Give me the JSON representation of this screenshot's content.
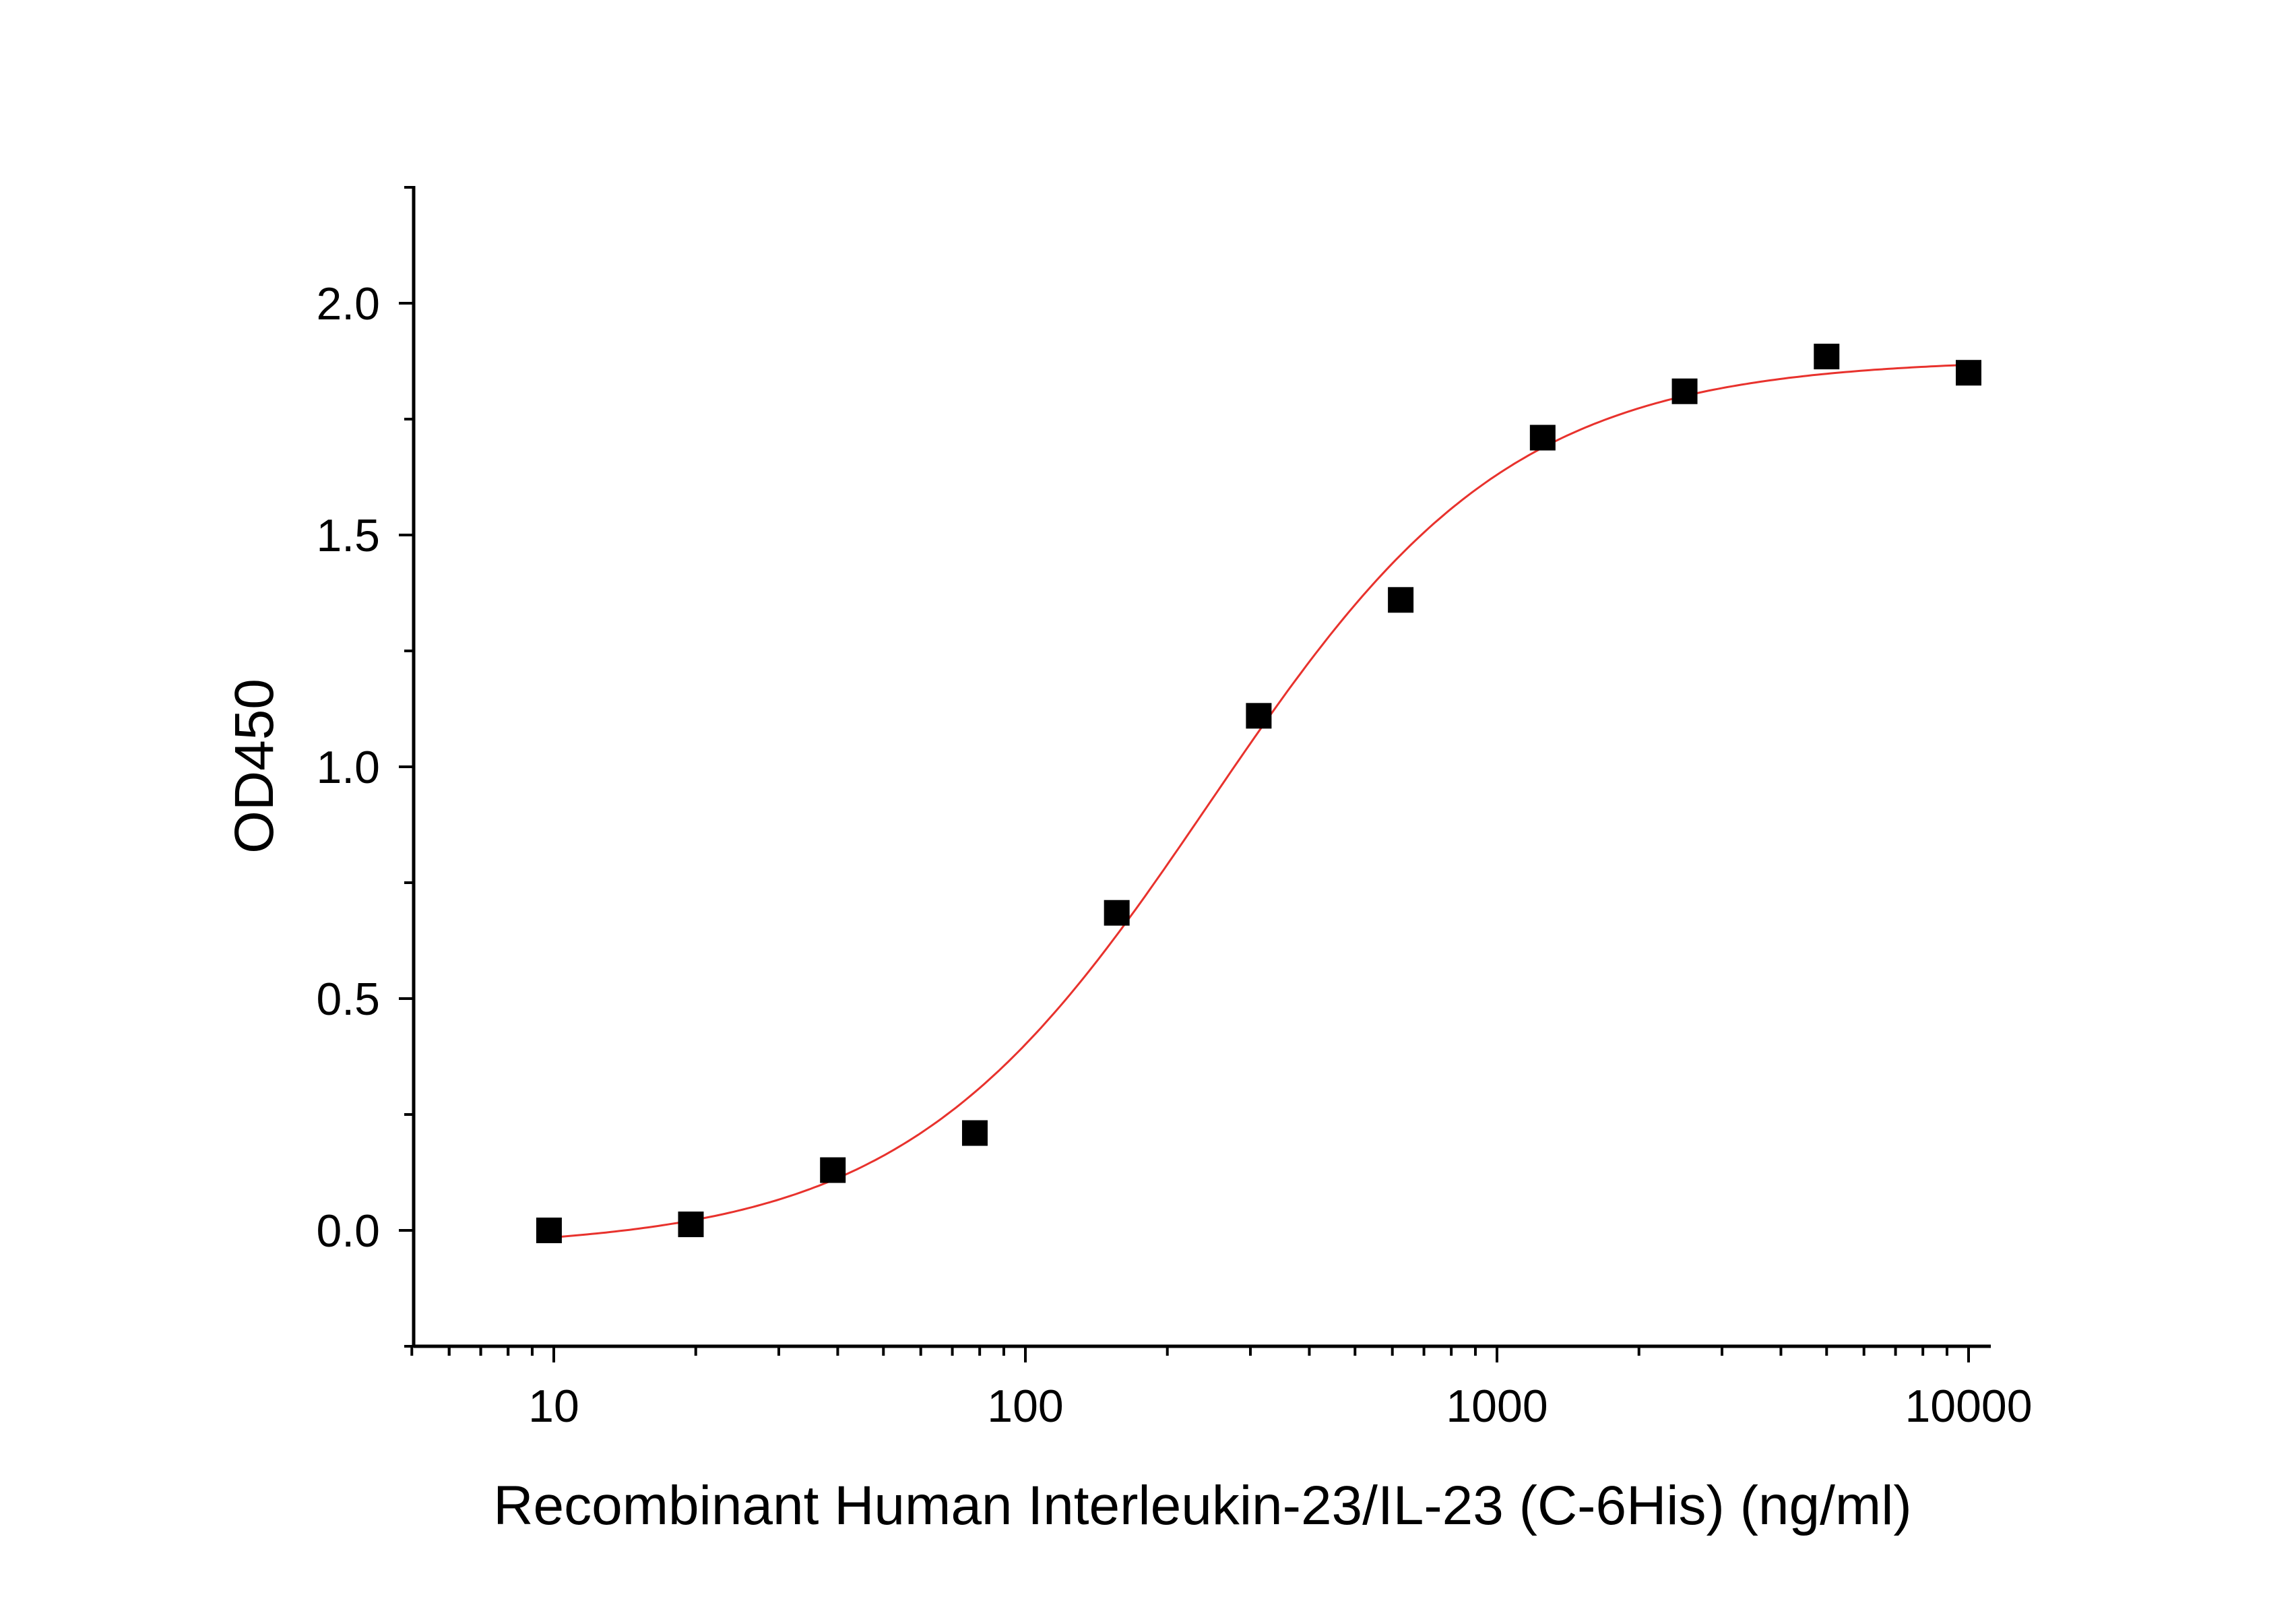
{
  "chart_data": {
    "type": "scatter",
    "xlabel": "Recombinant Human Interleukin-23/IL-23 (C-6His) (ng/ml)",
    "ylabel": "OD450",
    "x_scale": "log",
    "xlim": [
      5,
      11000
    ],
    "ylim": [
      -0.25,
      2.25
    ],
    "x_ticks": [
      10,
      100,
      1000,
      10000
    ],
    "x_tick_labels": [
      "10",
      "100",
      "1000",
      "10000"
    ],
    "y_ticks": [
      0.0,
      0.5,
      1.0,
      1.5,
      2.0
    ],
    "y_tick_labels": [
      "0.0",
      "0.5",
      "1.0",
      "1.5",
      "2.0"
    ],
    "grid": false,
    "series": [
      {
        "marker": "square",
        "color": "#000000",
        "x": [
          9.77,
          19.53,
          39.06,
          78.13,
          156.25,
          312.5,
          625,
          1250,
          2500,
          5000,
          10000
        ],
        "y": [
          0.0,
          0.013,
          0.13,
          0.21,
          0.685,
          1.11,
          1.36,
          1.71,
          1.81,
          1.885,
          1.85
        ]
      }
    ],
    "fit_curve": {
      "type": "4PL",
      "color": "#e8322d",
      "bottom": -0.04,
      "top": 1.88,
      "ec50": 245,
      "hill": 1.35,
      "x_range": [
        9.77,
        10000
      ]
    }
  }
}
